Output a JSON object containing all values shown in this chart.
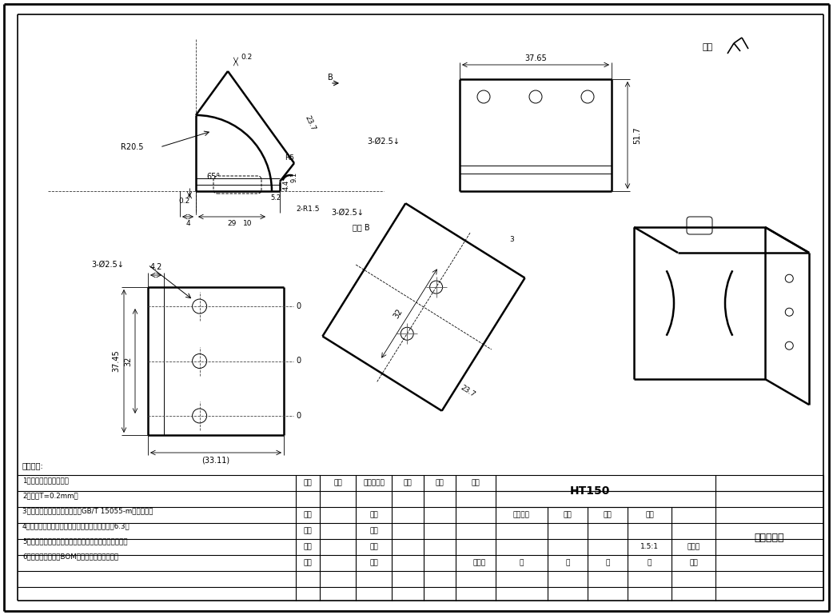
{
  "bg_color": "#ffffff",
  "line_color": "#000000",
  "tech_notes": [
    "技术要求:",
    "1、切断边倒棱去毛刺，",
    "2、板厚T=0.2mm，",
    "3、未注线性及角度尺寸公差按GB/T 15055-m级公差计，",
    "4、钣金下料采用激光切割工艺，切割面光洁度达6.3，",
    "5、表面涂装为灰白色环氧防锈底漆，螺纹孔涂防锈油，",
    "6、最终涂装颜色按BOM清单中备注颜色执行。"
  ],
  "title": "HT150",
  "part_name": "小型电机壳",
  "scale_val": "1.5:1",
  "label_biaoji": "标识号",
  "table_row0": [
    "标记",
    "处数",
    "更改文件号",
    "签字",
    "日期",
    "参数"
  ],
  "table_row1": [
    "设计",
    "",
    "工艺",
    "",
    "图样标记",
    "版本",
    "重量",
    "比例",
    ""
  ],
  "table_row2": [
    "制图",
    "",
    "标准",
    ""
  ],
  "table_row3": [
    "校对",
    "",
    "批准",
    ""
  ],
  "table_row4": [
    "审核",
    "",
    "日期",
    "",
    "主关件",
    "共",
    "张",
    "第",
    "张",
    "图号"
  ],
  "other_text": "其余",
  "view_b": "视图 B",
  "d37_65": "37.65",
  "d51_7": "51.7",
  "dR20_5": "R20.5",
  "dR5": "R5",
  "d65": "65°",
  "d0_2a": "0.2",
  "d23_7": "23.7",
  "dB": "B",
  "d0_2b": "0.2",
  "d4": "4",
  "d10": "10",
  "d29": "29",
  "d5_2": "5.2",
  "d4_4": "4.4",
  "d9_1": "9.1",
  "d2R1_5": "2-R1.5",
  "d3dia2_5": "3-Ø2.5↓",
  "d4_2": "4.2",
  "d37_45": "37.45",
  "d32": "32",
  "d33_11": "(33.11)",
  "d3": "3"
}
